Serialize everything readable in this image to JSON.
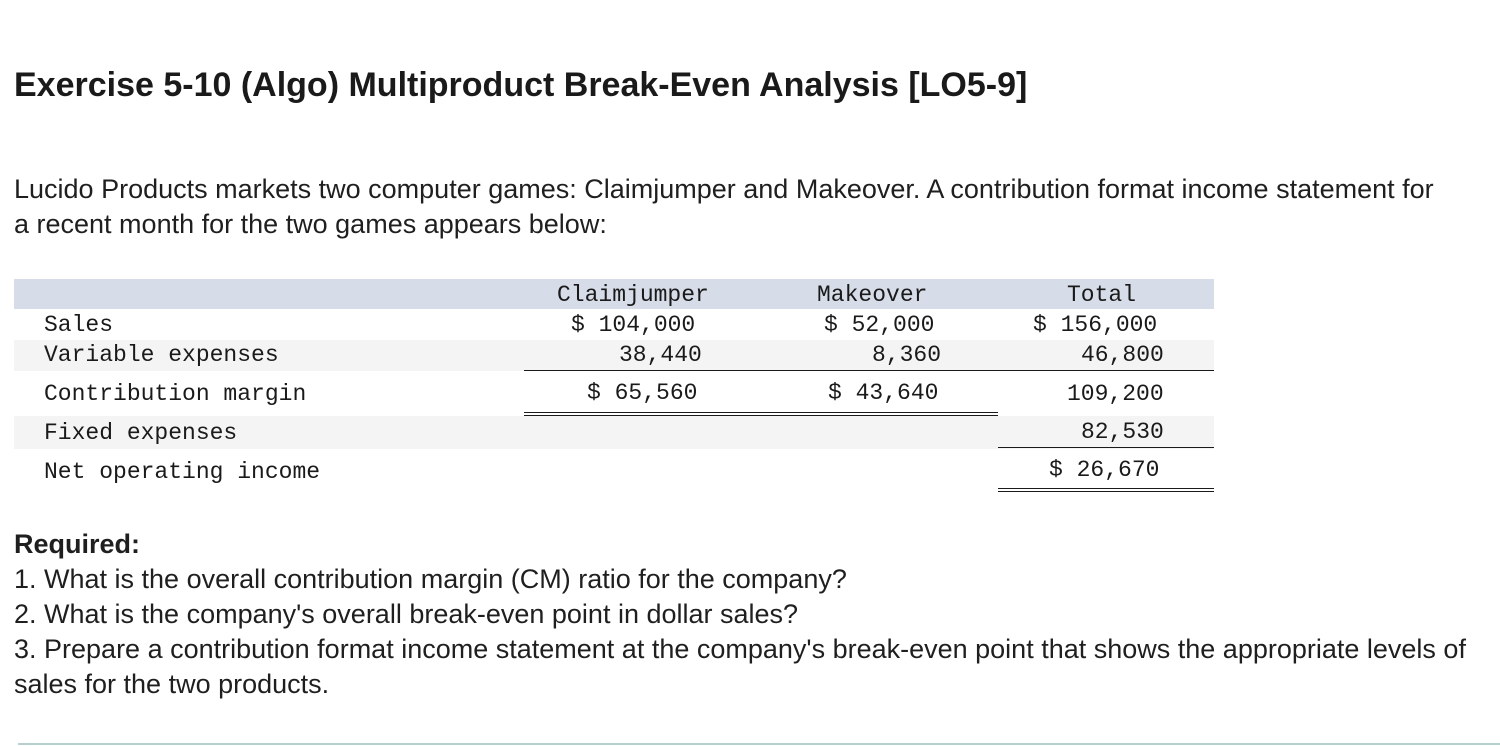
{
  "title": "Exercise 5-10 (Algo) Multiproduct Break-Even Analysis [LO5-9]",
  "intro": "Lucido Products markets two computer games: Claimjumper and Makeover. A contribution format income statement for a recent month for the two games appears below:",
  "statement": {
    "headers": [
      "Claimjumper",
      "Makeover",
      "Total"
    ],
    "rows": [
      {
        "label": "Sales",
        "claimjumper": "$ 104,000",
        "makeover": "$ 52,000",
        "total": "$ 156,000"
      },
      {
        "label": "Variable expenses",
        "claimjumper": "38,440",
        "makeover": "8,360",
        "total": "46,800"
      },
      {
        "label": "Contribution margin",
        "claimjumper": "$ 65,560",
        "makeover": "$ 43,640",
        "total": "109,200"
      },
      {
        "label": "Fixed expenses",
        "total": "82,530"
      },
      {
        "label": "Net operating income",
        "total": "$ 26,670"
      }
    ]
  },
  "required": {
    "heading": "Required:",
    "items": [
      "1. What is the overall contribution margin (CM) ratio for the company?",
      "2. What is the company's overall break-even point in dollar sales?",
      "3. Prepare a contribution format income statement at the company's break-even point that shows the appropriate levels of sales for the two products."
    ]
  }
}
